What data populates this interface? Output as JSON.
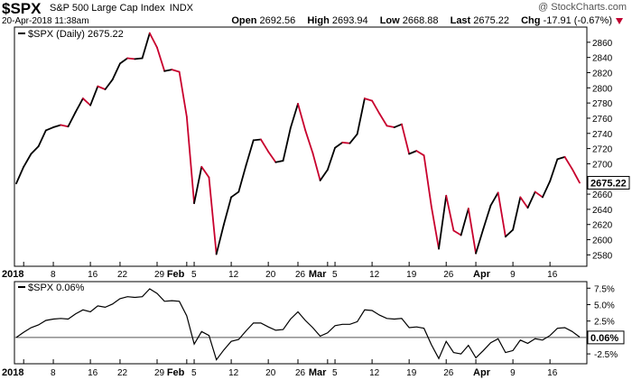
{
  "header": {
    "symbol": "$SPX",
    "name": "S&P 500 Large Cap Index",
    "exchange": "INDX",
    "brand": "@ StockCharts.com",
    "datetime": "20-Apr-2018 11:38am",
    "open_label": "Open",
    "open": "2692.56",
    "high_label": "High",
    "high": "2693.94",
    "low_label": "Low",
    "low": "2668.88",
    "last_label": "Last",
    "last": "2675.22",
    "chg_label": "Chg",
    "chg": "-17.91 (-0.67%)"
  },
  "colors": {
    "up": "#000000",
    "down": "#c8002d",
    "frame": "#000000",
    "grid": "#dddddd"
  },
  "chart_data": [
    {
      "type": "line",
      "legend": "$SPX (Daily) 2675.22",
      "ylim": [
        2565,
        2880
      ],
      "yticks": [
        2580,
        2600,
        2620,
        2640,
        2660,
        2680,
        2700,
        2720,
        2740,
        2760,
        2780,
        2800,
        2820,
        2840,
        2860
      ],
      "last_label": "2675.22",
      "xtick_labels": [
        "2018",
        "8",
        "16",
        "22",
        "29",
        "Feb",
        "5",
        "12",
        "20",
        "26",
        "Mar",
        "5",
        "12",
        "19",
        "26",
        "Apr",
        "9",
        "16"
      ],
      "x": [
        "Dec 29",
        "Jan 2",
        "Jan 3",
        "Jan 4",
        "Jan 5",
        "Jan 8",
        "Jan 9",
        "Jan 10",
        "Jan 11",
        "Jan 12",
        "Jan 16",
        "Jan 17",
        "Jan 18",
        "Jan 19",
        "Jan 22",
        "Jan 23",
        "Jan 24",
        "Jan 25",
        "Jan 26",
        "Jan 29",
        "Jan 30",
        "Jan 31",
        "Feb 1",
        "Feb 2",
        "Feb 5",
        "Feb 6",
        "Feb 7",
        "Feb 8",
        "Feb 9",
        "Feb 12",
        "Feb 13",
        "Feb 14",
        "Feb 15",
        "Feb 16",
        "Feb 20",
        "Feb 21",
        "Feb 22",
        "Feb 23",
        "Feb 26",
        "Feb 27",
        "Feb 28",
        "Mar 1",
        "Mar 2",
        "Mar 5",
        "Mar 6",
        "Mar 7",
        "Mar 8",
        "Mar 9",
        "Mar 12",
        "Mar 13",
        "Mar 14",
        "Mar 15",
        "Mar 16",
        "Mar 19",
        "Mar 20",
        "Mar 21",
        "Mar 22",
        "Mar 23",
        "Mar 26",
        "Mar 27",
        "Mar 28",
        "Mar 29",
        "Apr 2",
        "Apr 3",
        "Apr 4",
        "Apr 5",
        "Apr 6",
        "Apr 9",
        "Apr 10",
        "Apr 11",
        "Apr 12",
        "Apr 13",
        "Apr 16",
        "Apr 17",
        "Apr 18",
        "Apr 19",
        "Apr 20"
      ],
      "values": [
        2674,
        2696,
        2713,
        2723,
        2744,
        2748,
        2751,
        2749,
        2768,
        2786,
        2777,
        2802,
        2798,
        2811,
        2832,
        2839,
        2838,
        2839,
        2872,
        2853,
        2822,
        2824,
        2821,
        2762,
        2648,
        2696,
        2682,
        2581,
        2620,
        2656,
        2663,
        2698,
        2731,
        2732,
        2716,
        2702,
        2704,
        2747,
        2779,
        2744,
        2714,
        2678,
        2692,
        2721,
        2728,
        2727,
        2739,
        2786,
        2783,
        2766,
        2750,
        2748,
        2752,
        2713,
        2717,
        2711,
        2644,
        2588,
        2658,
        2612,
        2606,
        2641,
        2582,
        2614,
        2645,
        2662,
        2604,
        2613,
        2656,
        2642,
        2663,
        2656,
        2677,
        2706,
        2709,
        2693,
        2675
      ]
    },
    {
      "type": "line",
      "legend": "$SPX 0.06%",
      "ylim": [
        -4.0,
        8.5
      ],
      "ytick_labels": [
        "7.5%",
        "5.0%",
        "2.5%",
        "-2.5%"
      ],
      "yticks": [
        7.5,
        5.0,
        2.5,
        -2.5
      ],
      "zero_label": "0.06%",
      "xtick_labels": [
        "2018",
        "8",
        "16",
        "22",
        "29",
        "Feb",
        "5",
        "12",
        "20",
        "26",
        "Mar",
        "5",
        "12",
        "19",
        "26",
        "Apr",
        "9",
        "16"
      ],
      "values": [
        0.0,
        0.8,
        1.5,
        1.9,
        2.6,
        2.8,
        2.9,
        2.8,
        3.6,
        4.2,
        3.9,
        4.8,
        4.6,
        5.1,
        5.9,
        6.2,
        6.1,
        6.2,
        7.4,
        6.7,
        5.5,
        5.6,
        5.5,
        3.3,
        -1.0,
        0.9,
        0.3,
        -3.4,
        -1.9,
        -0.6,
        -0.3,
        1.0,
        2.2,
        2.2,
        1.6,
        1.1,
        1.2,
        2.8,
        3.9,
        2.6,
        1.5,
        0.2,
        0.7,
        1.8,
        2.0,
        2.0,
        2.4,
        4.2,
        4.1,
        3.4,
        2.9,
        2.8,
        2.9,
        1.5,
        1.6,
        1.4,
        -1.1,
        -3.2,
        -0.6,
        -2.3,
        -2.5,
        -1.2,
        -3.1,
        -2.0,
        -0.8,
        -0.2,
        -2.3,
        -2.0,
        -0.4,
        -0.9,
        -0.2,
        -0.4,
        0.3,
        1.4,
        1.5,
        0.9,
        0.06
      ]
    }
  ]
}
